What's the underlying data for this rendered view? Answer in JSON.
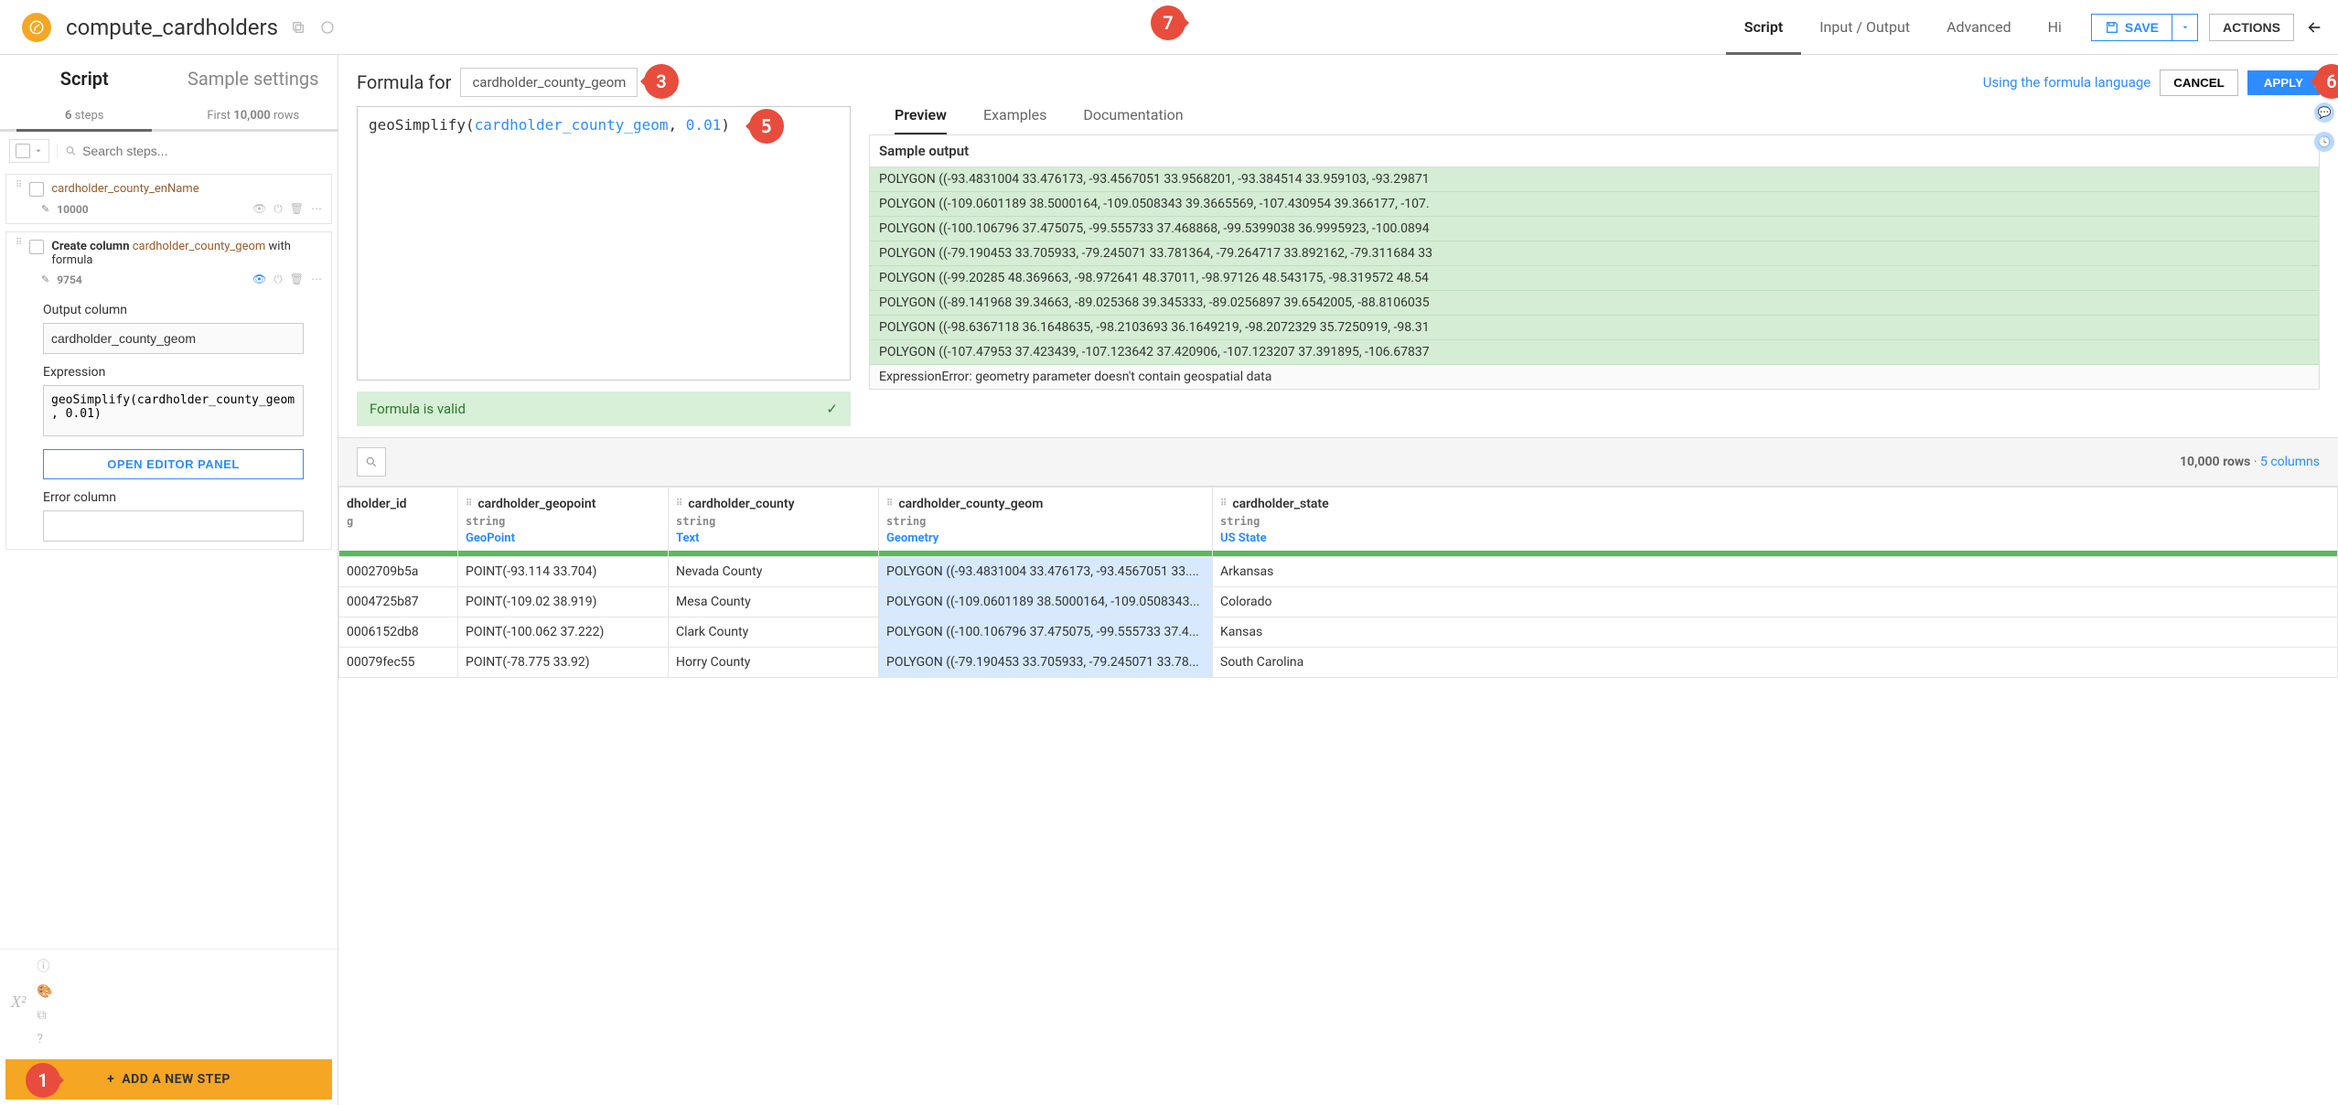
{
  "header": {
    "title": "compute_cardholders",
    "nav": [
      "Script",
      "Input / Output",
      "Advanced",
      "Hi"
    ],
    "active_nav_index": 0,
    "save_label": "SAVE",
    "actions_label": "ACTIONS"
  },
  "left": {
    "tabs": [
      "Script",
      "Sample settings"
    ],
    "active_tab_index": 0,
    "steps_count_prefix": "6",
    "steps_count_suffix": "steps",
    "rows_prefix": "First",
    "rows_bold": "10,000",
    "rows_suffix": "rows",
    "search_placeholder": "Search steps...",
    "step1": {
      "title": "cardholder_county_enName",
      "count": "10000"
    },
    "step2": {
      "prefix": "Create column ",
      "col": "cardholder_county_geom",
      "suffix": " with formula",
      "count": "9754"
    },
    "form": {
      "output_label": "Output column",
      "output_value": "cardholder_county_geom",
      "expression_label": "Expression",
      "expression_value": "geoSimplify(cardholder_county_geom, 0.01)",
      "open_editor": "OPEN EDITOR PANEL",
      "error_label": "Error column"
    },
    "add_step": "ADD A NEW STEP"
  },
  "formula": {
    "label": "Formula for",
    "column": "cardholder_county_geom",
    "lang_link": "Using the formula language",
    "cancel": "CANCEL",
    "apply": "APPLY",
    "code_fn": "geoSimplify",
    "code_arg": "cardholder_county_geom",
    "code_sep": ", ",
    "code_num": "0.01",
    "valid": "Formula is valid"
  },
  "preview": {
    "tabs": [
      "Preview",
      "Examples",
      "Documentation"
    ],
    "active": 0,
    "head": "Sample output",
    "rows": [
      "POLYGON ((-93.4831004 33.476173, -93.4567051 33.9568201, -93.384514 33.959103, -93.29871",
      "POLYGON ((-109.0601189 38.5000164, -109.0508343 39.3665569, -107.430954 39.366177, -107.",
      "POLYGON ((-100.106796 37.475075, -99.555733 37.468868, -99.5399038 36.9995923, -100.0894",
      "POLYGON ((-79.190453 33.705933, -79.245071 33.781364, -79.264717 33.892162, -79.311684 33",
      "POLYGON ((-99.20285 48.369663, -98.972641 48.37011, -98.97126 48.543175, -98.319572 48.54",
      "POLYGON ((-89.141968 39.34663, -89.025368 39.345333, -89.0256897 39.6542005, -88.8106035",
      "POLYGON ((-98.6367118 36.1648635, -98.2103693 36.1649219, -98.2072329 35.7250919, -98.31",
      "POLYGON ((-107.47953 37.423439, -107.123642 37.420906, -107.123207 37.391895, -106.67837"
    ],
    "error_row": "ExpressionError: geometry parameter doesn't contain geospatial data"
  },
  "table": {
    "rows_info_a": "10,000 rows",
    "rows_info_b": "5 columns",
    "columns": [
      {
        "name": "dholder_id",
        "type": "g",
        "meaning": ""
      },
      {
        "name": "cardholder_geopoint",
        "type": "string",
        "meaning": "GeoPoint"
      },
      {
        "name": "cardholder_county",
        "type": "string",
        "meaning": "Text"
      },
      {
        "name": "cardholder_county_geom",
        "type": "string",
        "meaning": "Geometry"
      },
      {
        "name": "cardholder_state",
        "type": "string",
        "meaning": "US State"
      }
    ],
    "data": [
      [
        "0002709b5a",
        "POINT(-93.114 33.704)",
        "Nevada County",
        "POLYGON ((-93.4831004 33.476173, -93.4567051 33....",
        "Arkansas"
      ],
      [
        "0004725b87",
        "POINT(-109.02 38.919)",
        "Mesa County",
        "POLYGON ((-109.0601189 38.5000164, -109.0508343...",
        "Colorado"
      ],
      [
        "0006152db8",
        "POINT(-100.062 37.222)",
        "Clark County",
        "POLYGON ((-100.106796 37.475075, -99.555733 37.4...",
        "Kansas"
      ],
      [
        "00079fec55",
        "POINT(-78.775 33.92)",
        "Horry County",
        "POLYGON ((-79.190453 33.705933, -79.245071 33.78...",
        "South Carolina"
      ]
    ]
  },
  "callouts": {
    "c1": "1",
    "c3": "3",
    "c5": "5",
    "c6": "6",
    "c7": "7"
  },
  "colors": {
    "accent_orange": "#f5a623",
    "accent_blue": "#2d8cff",
    "callout_red": "#e84c3d",
    "valid_green_bg": "#d8efd8",
    "preview_green": "#d4edd4",
    "highlight_blue": "#d6e9ff"
  }
}
